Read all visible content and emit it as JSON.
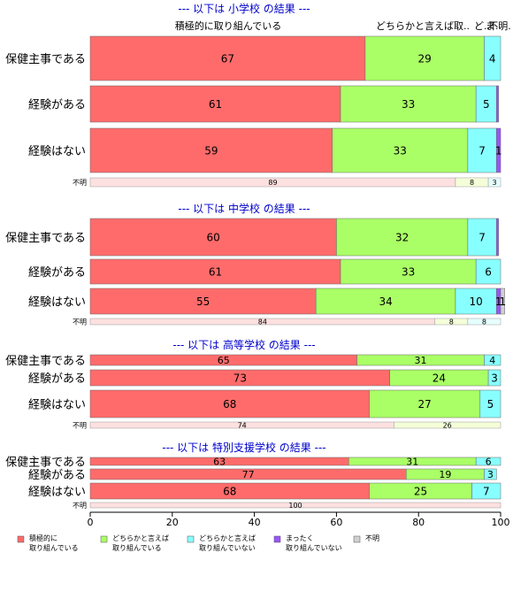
{
  "chart_data": {
    "type": "bar",
    "orientation": "horizontal",
    "stacked": true,
    "xlim": [
      0,
      100
    ],
    "xticks": [
      0,
      20,
      40,
      60,
      80,
      100
    ],
    "grid": false,
    "legend_position": "bottom",
    "top_category_labels": [
      "積極的に取り組んでいる",
      "どちらかと言えば取..",
      "ど..",
      "ま..",
      "不明."
    ],
    "legend": [
      {
        "label": "積極的に\n取り組んでいる",
        "color": "#ff6b6b"
      },
      {
        "label": "どちらかと言えば\n取り組んでいる",
        "color": "#aaff66"
      },
      {
        "label": "どちらかと言えば\n取り組んでいない",
        "color": "#88ffff"
      },
      {
        "label": "まったく\n取り組んでいない",
        "color": "#9955ff"
      },
      {
        "label": "不明",
        "color": "#d0d0d0"
      }
    ],
    "sections": [
      {
        "title": "--- 以下は 小学校 の結果 ---",
        "rows": [
          {
            "label": "保健主事である",
            "values": [
              67,
              29,
              4,
              0,
              0
            ],
            "value_labels": [
              "67",
              "29",
              "4",
              "",
              ""
            ]
          },
          {
            "label": "経験がある",
            "values": [
              61,
              33,
              5,
              0.5,
              0
            ],
            "value_labels": [
              "61",
              "33",
              "5",
              "",
              ""
            ]
          },
          {
            "label": "経験はない",
            "values": [
              59,
              33,
              7,
              1,
              0
            ],
            "value_labels": [
              "59",
              "33",
              "7",
              "1",
              ""
            ]
          },
          {
            "label": "不明",
            "values": [
              89,
              8,
              3,
              0,
              0
            ],
            "value_labels": [
              "89",
              "8",
              "3",
              "",
              ""
            ],
            "small": true
          }
        ]
      },
      {
        "title": "--- 以下は 中学校 の結果 ---",
        "rows": [
          {
            "label": "保健主事である",
            "values": [
              60,
              32,
              7,
              0.5,
              0
            ],
            "value_labels": [
              "60",
              "32",
              "7",
              "",
              ""
            ]
          },
          {
            "label": "経験がある",
            "values": [
              61,
              33,
              6,
              0,
              0
            ],
            "value_labels": [
              "61",
              "33",
              "6",
              "",
              ""
            ]
          },
          {
            "label": "経験はない",
            "values": [
              55,
              34,
              10,
              1,
              1
            ],
            "value_labels": [
              "55",
              "34",
              "10",
              "1",
              "1"
            ]
          },
          {
            "label": "不明",
            "values": [
              84,
              8,
              8,
              0,
              0
            ],
            "value_labels": [
              "84",
              "8",
              "8",
              "",
              ""
            ],
            "small": true
          }
        ]
      },
      {
        "title": "--- 以下は 高等学校 の結果 ---",
        "rows": [
          {
            "label": "保健主事である",
            "values": [
              65,
              31,
              4,
              0,
              0
            ],
            "value_labels": [
              "65",
              "31",
              "4",
              "",
              ""
            ]
          },
          {
            "label": "経験がある",
            "values": [
              73,
              24,
              3,
              0,
              0
            ],
            "value_labels": [
              "73",
              "24",
              "3",
              "",
              ""
            ]
          },
          {
            "label": "経験はない",
            "values": [
              68,
              27,
              5,
              0,
              0
            ],
            "value_labels": [
              "68",
              "27",
              "5",
              "",
              ""
            ]
          },
          {
            "label": "不明",
            "values": [
              74,
              26,
              0,
              0,
              0
            ],
            "value_labels": [
              "74",
              "26",
              "",
              "",
              ""
            ],
            "small": true
          }
        ]
      },
      {
        "title": "--- 以下は 特別支援学校 の結果 ---",
        "rows": [
          {
            "label": "保健主事である",
            "values": [
              63,
              31,
              6,
              0,
              0
            ],
            "value_labels": [
              "63",
              "31",
              "6",
              "",
              ""
            ]
          },
          {
            "label": "経験がある",
            "values": [
              77,
              19,
              3,
              0,
              0
            ],
            "value_labels": [
              "77",
              "19",
              "3",
              "",
              ""
            ]
          },
          {
            "label": "経験はない",
            "values": [
              68,
              25,
              7,
              0,
              0
            ],
            "value_labels": [
              "68",
              "25",
              "7",
              "",
              ""
            ]
          },
          {
            "label": "不明",
            "values": [
              100,
              0,
              0,
              0,
              0
            ],
            "value_labels": [
              "100",
              "",
              "",
              "",
              ""
            ],
            "small": true
          }
        ]
      }
    ]
  }
}
